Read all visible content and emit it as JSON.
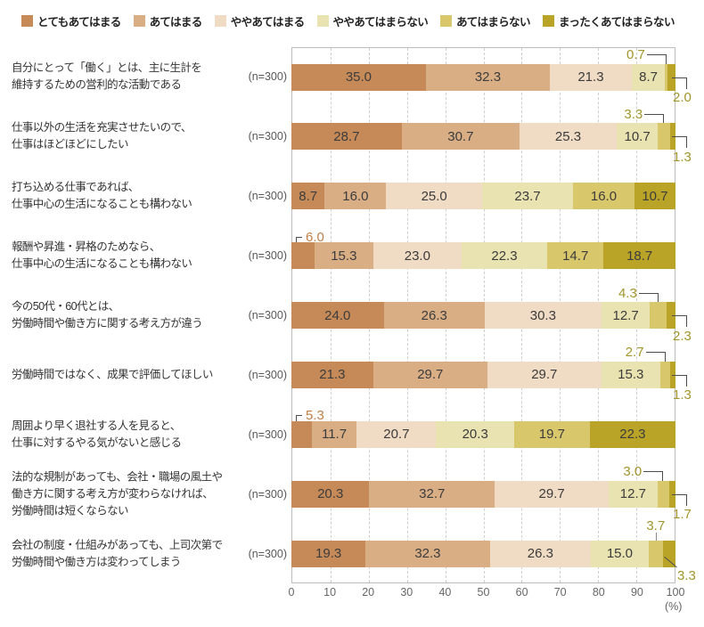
{
  "chart_data": {
    "type": "stacked_bar_horizontal",
    "title": "",
    "unit_label": "(%)",
    "xlim": [
      0,
      100
    ],
    "x_ticks": [
      0,
      10,
      20,
      30,
      40,
      50,
      60,
      70,
      80,
      90,
      100
    ],
    "legend_position": "top",
    "n_label": "(n=300)",
    "legend": [
      "とてもあてはまる",
      "あてはまる",
      "ややあてはまる",
      "ややあてはまらない",
      "あてはまらない",
      "まったくあてはまらない"
    ],
    "categories": [
      [
        "自分にとって「働く」とは、主に生計を",
        "維持するための営利的な活動である"
      ],
      [
        "仕事以外の生活を充実させたいので、",
        "仕事はほどほどにしたい"
      ],
      [
        "打ち込める仕事であれば、",
        "仕事中心の生活になることも構わない"
      ],
      [
        "報酬や昇進・昇格のためなら、",
        "仕事中心の生活になることも構わない"
      ],
      [
        "今の50代・60代とは、",
        "労働時間や働き方に関する考え方が違う"
      ],
      [
        "労働時間ではなく、成果で評価してほしい"
      ],
      [
        "周囲より早く退社する人を見ると、",
        "仕事に対するやる気がないと感じる"
      ],
      [
        "法的な規制があっても、会社・職場の風土や",
        "働き方に関する考え方が変わらなければ、",
        "労働時間は短くならない"
      ],
      [
        "会社の制度・仕組みがあっても、上司次第で",
        "労働時間や働き方は変わってしまう"
      ]
    ],
    "series": [
      {
        "name": "とてもあてはまる",
        "color": "#C68A58",
        "values": [
          35.0,
          28.7,
          8.7,
          6.0,
          24.0,
          21.3,
          5.3,
          20.3,
          19.3
        ]
      },
      {
        "name": "あてはまる",
        "color": "#D9AE85",
        "values": [
          32.3,
          30.7,
          16.0,
          15.3,
          26.3,
          29.7,
          11.7,
          32.7,
          32.3
        ]
      },
      {
        "name": "ややあてはまる",
        "color": "#F0DBC4",
        "values": [
          21.3,
          25.3,
          25.0,
          23.0,
          30.3,
          29.7,
          20.7,
          29.7,
          26.3
        ]
      },
      {
        "name": "ややあてはまらない",
        "color": "#E8E3B0",
        "values": [
          8.7,
          10.7,
          23.7,
          22.3,
          12.7,
          15.3,
          20.3,
          12.7,
          15.0
        ]
      },
      {
        "name": "あてはまらない",
        "color": "#D9C76C",
        "values": [
          0.7,
          3.3,
          16.0,
          14.7,
          4.3,
          2.7,
          19.7,
          3.0,
          3.7
        ]
      },
      {
        "name": "まったくあてはまらない",
        "color": "#B9A427",
        "values": [
          2.0,
          1.3,
          10.7,
          18.7,
          2.3,
          1.3,
          22.3,
          1.7,
          3.3
        ]
      }
    ],
    "callouts": [
      [
        {
          "series": 4,
          "type": "above"
        },
        {
          "series": 5,
          "type": "below"
        }
      ],
      [
        {
          "series": 4,
          "type": "above"
        },
        {
          "series": 5,
          "type": "below"
        }
      ],
      [],
      [
        {
          "series": 0,
          "type": "left"
        }
      ],
      [
        {
          "series": 4,
          "type": "above"
        },
        {
          "series": 5,
          "type": "below"
        }
      ],
      [
        {
          "series": 4,
          "type": "above"
        },
        {
          "series": 5,
          "type": "below"
        }
      ],
      [
        {
          "series": 0,
          "type": "left"
        }
      ],
      [
        {
          "series": 4,
          "type": "above"
        },
        {
          "series": 5,
          "type": "below"
        }
      ],
      [
        {
          "series": 4,
          "type": "tick"
        },
        {
          "series": 5,
          "type": "diag"
        }
      ]
    ]
  },
  "colors": {
    "callout_text_olive": "#A2952B",
    "callout_text_brown": "#BE8048",
    "callout_line": "#4d4d4d",
    "value_text": "#3c3c3c",
    "grid": "#cfcfcf",
    "frame_border": "#bdbdbd",
    "axis_text": "#666666"
  }
}
